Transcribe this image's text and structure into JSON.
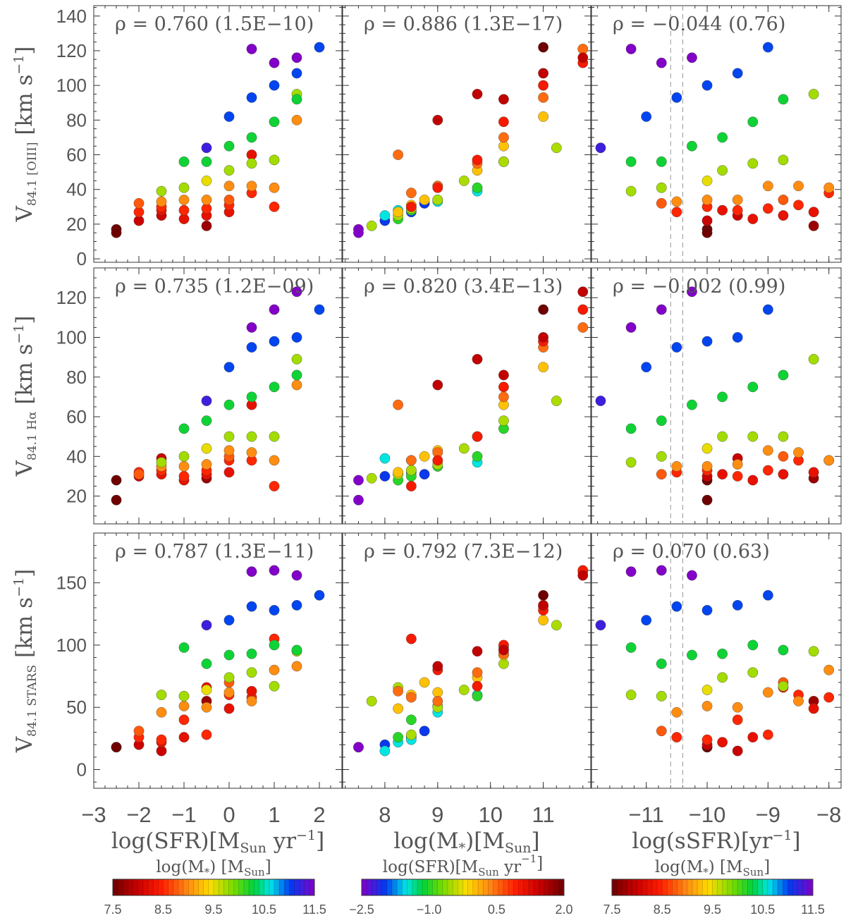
{
  "chart_data": {
    "type": "scatter",
    "grid": false,
    "column_xlabels": [
      {
        "main": "log(SFR)[M",
        "sub": "Sun",
        "mid": " yr",
        "sup": "−1",
        "tail": "]"
      },
      {
        "main": "log(M",
        "sub": "*",
        "mid": ")[M",
        "sup": "",
        "tail": "",
        "sub2": "Sun",
        "tail2": "]"
      },
      {
        "main": "log(sSFR)[yr",
        "sub": "",
        "mid": "",
        "sup": "−1",
        "tail": "]"
      }
    ],
    "row_ylabels": [
      {
        "v": "V",
        "sub": "84.1 [OIII]",
        "unit": "[km s",
        "sup": "−1",
        "tail": "]"
      },
      {
        "v": "V",
        "sub": "84.1 Hα",
        "unit": "[km s",
        "sup": "−1",
        "tail": "]"
      },
      {
        "v": "V",
        "sub": "84.1 STARS",
        "unit": "[km s",
        "sup": "−1",
        "tail": "]"
      }
    ],
    "xlim": [
      [
        -3,
        2.5
      ],
      [
        7.2,
        11.9
      ],
      [
        -11.9,
        -7.8
      ]
    ],
    "ylim": [
      [
        -2,
        146
      ],
      [
        6,
        135
      ],
      [
        -15,
        190
      ]
    ],
    "xticks": [
      [
        -3,
        -2,
        -1,
        0,
        1,
        2
      ],
      [
        8,
        9,
        10,
        11
      ],
      [
        -11,
        -10,
        -9,
        -8
      ]
    ],
    "yticks": [
      [
        0,
        20,
        40,
        60,
        80,
        100,
        120,
        140
      ],
      [
        20,
        40,
        60,
        80,
        100,
        120
      ],
      [
        0,
        50,
        100,
        150
      ]
    ],
    "vlines_col3": [
      -10.6,
      -10.4
    ],
    "annotations": [
      [
        "ρ = 0.760 (1.5E−10)",
        "ρ = 0.886 (1.3E−17)",
        "ρ = −0.044 (0.76)"
      ],
      [
        "ρ = 0.735 (1.2E−09)",
        "ρ = 0.820 (3.4E−13)",
        "ρ = −0.002 (0.99)"
      ],
      [
        "ρ = 0.787 (1.3E−11)",
        "ρ = 0.792 (7.3E−12)",
        "ρ = 0.070 (0.63)"
      ]
    ],
    "colorbars": [
      {
        "title": "log(M",
        "sub": "*",
        "tail": ") [M",
        "sub2": "Sun",
        "tail2": "]",
        "palette": "rainbow_mass",
        "range": [
          7.5,
          11.5
        ],
        "ticks": [
          "7.5",
          "8.5",
          "9.5",
          "10.5",
          "11.5"
        ]
      },
      {
        "title": "log(SFR)[M",
        "sub": "Sun",
        "tail": " yr",
        "sup": "−1",
        "tail2": "]",
        "palette": "rainbow_sfr",
        "range": [
          -2.5,
          2.0
        ],
        "ticks": [
          "−2.5",
          "−1.0",
          "0.5",
          "2.0"
        ]
      },
      {
        "title": "log(M",
        "sub": "*",
        "tail": ") [M",
        "sub2": "Sun",
        "tail2": "]",
        "palette": "rainbow_mass",
        "range": [
          7.5,
          11.5
        ],
        "ticks": [
          "7.5",
          "8.5",
          "9.5",
          "10.5",
          "11.5"
        ]
      }
    ],
    "galaxies": [
      {
        "sfr": -2.5,
        "m": 7.5,
        "v": [
          17,
          18,
          18
        ]
      },
      {
        "sfr": -2.5,
        "m": 7.5,
        "v": [
          15,
          28,
          18
        ]
      },
      {
        "sfr": -2.0,
        "m": 8.0,
        "v": [
          22,
          30,
          20
        ]
      },
      {
        "sfr": -2.0,
        "m": 8.5,
        "v": [
          27,
          32,
          26
        ]
      },
      {
        "sfr": -2.0,
        "m": 8.75,
        "v": [
          32,
          31,
          31
        ]
      },
      {
        "sfr": -1.5,
        "m": 8.0,
        "v": [
          25,
          39,
          15
        ]
      },
      {
        "sfr": -1.5,
        "m": 8.25,
        "v": [
          28,
          31,
          22
        ]
      },
      {
        "sfr": -1.5,
        "m": 8.5,
        "v": [
          30,
          33,
          24
        ]
      },
      {
        "sfr": -1.5,
        "m": 9.0,
        "v": [
          33,
          35,
          46
        ]
      },
      {
        "sfr": -1.5,
        "m": 9.75,
        "v": [
          39,
          37,
          60
        ]
      },
      {
        "sfr": -1.0,
        "m": 8.25,
        "v": [
          23,
          28,
          26
        ]
      },
      {
        "sfr": -1.0,
        "m": 8.5,
        "v": [
          28,
          30,
          40
        ]
      },
      {
        "sfr": -1.0,
        "m": 9.0,
        "v": [
          34,
          35,
          51
        ]
      },
      {
        "sfr": -1.0,
        "m": 9.75,
        "v": [
          41,
          40,
          59
        ]
      },
      {
        "sfr": -1.0,
        "m": 10.25,
        "v": [
          56,
          54,
          98
        ]
      },
      {
        "sfr": -0.5,
        "m": 7.75,
        "v": [
          19,
          29,
          55
        ]
      },
      {
        "sfr": -0.5,
        "m": 8.25,
        "v": [
          25,
          31,
          66
        ]
      },
      {
        "sfr": -0.5,
        "m": 8.5,
        "v": [
          29,
          33,
          28
        ]
      },
      {
        "sfr": -0.5,
        "m": 9.0,
        "v": [
          34,
          36,
          50
        ]
      },
      {
        "sfr": -0.5,
        "m": 9.5,
        "v": [
          45,
          44,
          64
        ]
      },
      {
        "sfr": -0.5,
        "m": 10.25,
        "v": [
          56,
          58,
          85
        ]
      },
      {
        "sfr": -0.5,
        "m": 11.25,
        "v": [
          64,
          68,
          116
        ]
      },
      {
        "sfr": 0.0,
        "m": 8.25,
        "v": [
          27,
          32,
          49
        ]
      },
      {
        "sfr": 0.0,
        "m": 8.5,
        "v": [
          31,
          38,
          60
        ]
      },
      {
        "sfr": 0.0,
        "m": 8.75,
        "v": [
          34,
          40,
          70
        ]
      },
      {
        "sfr": 0.0,
        "m": 9.0,
        "v": [
          42,
          43,
          62
        ]
      },
      {
        "sfr": 0.0,
        "m": 9.75,
        "v": [
          51,
          50,
          74
        ]
      },
      {
        "sfr": 0.0,
        "m": 10.25,
        "v": [
          65,
          66,
          92
        ]
      },
      {
        "sfr": 0.0,
        "m": 11.0,
        "v": [
          82,
          85,
          120
        ]
      },
      {
        "sfr": 0.5,
        "m": 8.5,
        "v": [
          38,
          38,
          58
        ]
      },
      {
        "sfr": 0.5,
        "m": 8.25,
        "v": [
          60,
          66,
          63
        ]
      },
      {
        "sfr": 0.5,
        "m": 9.0,
        "v": [
          42,
          42,
          55
        ]
      },
      {
        "sfr": 0.5,
        "m": 9.75,
        "v": [
          55,
          50,
          78
        ]
      },
      {
        "sfr": 0.5,
        "m": 10.25,
        "v": [
          70,
          70,
          93
        ]
      },
      {
        "sfr": 0.5,
        "m": 11.0,
        "v": [
          93,
          95,
          131
        ]
      },
      {
        "sfr": 0.5,
        "m": 11.75,
        "v": [
          121,
          105,
          159
        ]
      },
      {
        "sfr": 1.0,
        "m": 8.5,
        "v": [
          30,
          25,
          105
        ]
      },
      {
        "sfr": 1.0,
        "m": 9.0,
        "v": [
          41,
          38,
          80
        ]
      },
      {
        "sfr": 1.0,
        "m": 9.75,
        "v": [
          57,
          50,
          67
        ]
      },
      {
        "sfr": 1.0,
        "m": 10.25,
        "v": [
          79,
          75,
          100
        ]
      },
      {
        "sfr": 1.0,
        "m": 11.0,
        "v": [
          100,
          98,
          128
        ]
      },
      {
        "sfr": 1.0,
        "m": 11.75,
        "v": [
          113,
          114,
          160
        ]
      },
      {
        "sfr": 1.5,
        "m": 9.0,
        "v": [
          80,
          76,
          83
        ]
      },
      {
        "sfr": 1.5,
        "m": 9.75,
        "v": [
          95,
          89,
          95
        ]
      },
      {
        "sfr": 1.5,
        "m": 10.25,
        "v": [
          92,
          81,
          96
        ]
      },
      {
        "sfr": 1.5,
        "m": 11.0,
        "v": [
          107,
          100,
          132
        ]
      },
      {
        "sfr": 1.5,
        "m": 11.75,
        "v": [
          116,
          123,
          156
        ]
      },
      {
        "sfr": 2.0,
        "m": 11.0,
        "v": [
          122,
          114,
          140
        ]
      }
    ]
  }
}
